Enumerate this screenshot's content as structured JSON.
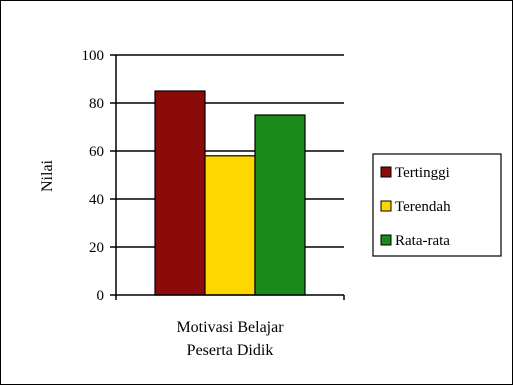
{
  "chart_data": {
    "type": "bar",
    "title": "",
    "xlabel": "",
    "ylabel": "Nilai",
    "ylim": [
      0,
      100
    ],
    "yticks": [
      0,
      20,
      40,
      60,
      80,
      100
    ],
    "grid": true,
    "legend_position": "right",
    "category_lines": [
      "Motivasi Belajar",
      "Peserta Didik"
    ],
    "categories": [
      "Motivasi Belajar Peserta Didik"
    ],
    "series": [
      {
        "name": "Tertinggi",
        "values": [
          85
        ],
        "color": "#8B0A0A"
      },
      {
        "name": "Terendah",
        "values": [
          58
        ],
        "color": "#FFD700"
      },
      {
        "name": "Rata-rata",
        "values": [
          75
        ],
        "color": "#1A8A1A"
      }
    ]
  }
}
